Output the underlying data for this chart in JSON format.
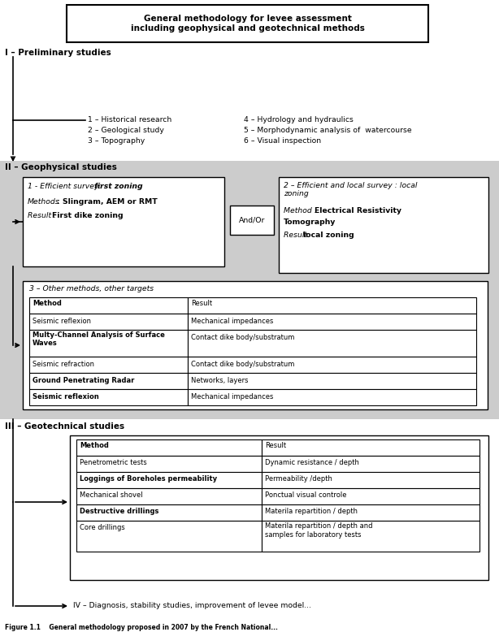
{
  "title_box": "General methodology for levee assessment\nincluding geophysical and geotechnical methods",
  "section_I": "I – Preliminary studies",
  "section_II": "II – Geophysical studies",
  "section_III": "III – Geotechnical studies",
  "section_IV": "IV – Diagnosis, stability studies, improvement of levee model...",
  "prelim_left": [
    "1 – Historical research",
    "2 – Geological study",
    "3 – Topography"
  ],
  "prelim_right": [
    "4 – Hydrology and hydraulics",
    "5 – Morphodynamic analysis of  watercourse",
    "6 – Visual inspection"
  ],
  "box1_title": "1 - Efficient survey: ",
  "box1_title_bold": "first zoning",
  "box1_methods_plain": "Methods",
  "box1_methods_bold": ": Slingram, AEM or RMT",
  "box1_result_plain": "Result : ",
  "box1_result_bold": "First dike zoning",
  "andor": "And/Or",
  "box2_title": "2 – Efficient and local survey : local\nzoning",
  "box2_method_plain": "Method : ",
  "box2_method_bold": "Electrical Resistivity\nTomography",
  "box2_result_plain": "Result ",
  "box2_result_bold": "local zoning",
  "box3_title": "3 – Other methods, other targets",
  "geo_table_rows": [
    [
      "Seismic reflexion",
      "Mechanical impedances",
      false
    ],
    [
      "Multy-Channel Analysis of Surface Waves",
      "Contact dike body/substratum",
      true
    ],
    [
      "Seismic refraction",
      "Contact dike body/substratum",
      false
    ],
    [
      "Ground Penetrating Radar",
      "Networks, layers",
      true
    ],
    [
      "Seismic reflexion",
      "Mechanical impedances",
      true
    ]
  ],
  "geotech_table_rows": [
    [
      "Penetrometric tests",
      "Dynamic resistance / depth",
      false
    ],
    [
      "Loggings of Boreholes permeability",
      "Permeability /depth",
      true
    ],
    [
      "Mechanical shovel",
      "Ponctual visual controle",
      false
    ],
    [
      "Destructive drillings",
      "Materila repartition / depth",
      true
    ],
    [
      "Core drillings",
      "Materila repartition / depth and\nsamples for laboratory tests",
      false
    ]
  ],
  "bg_color": "#ffffff",
  "gray_bg": "#cccccc",
  "font_size": 7.0
}
